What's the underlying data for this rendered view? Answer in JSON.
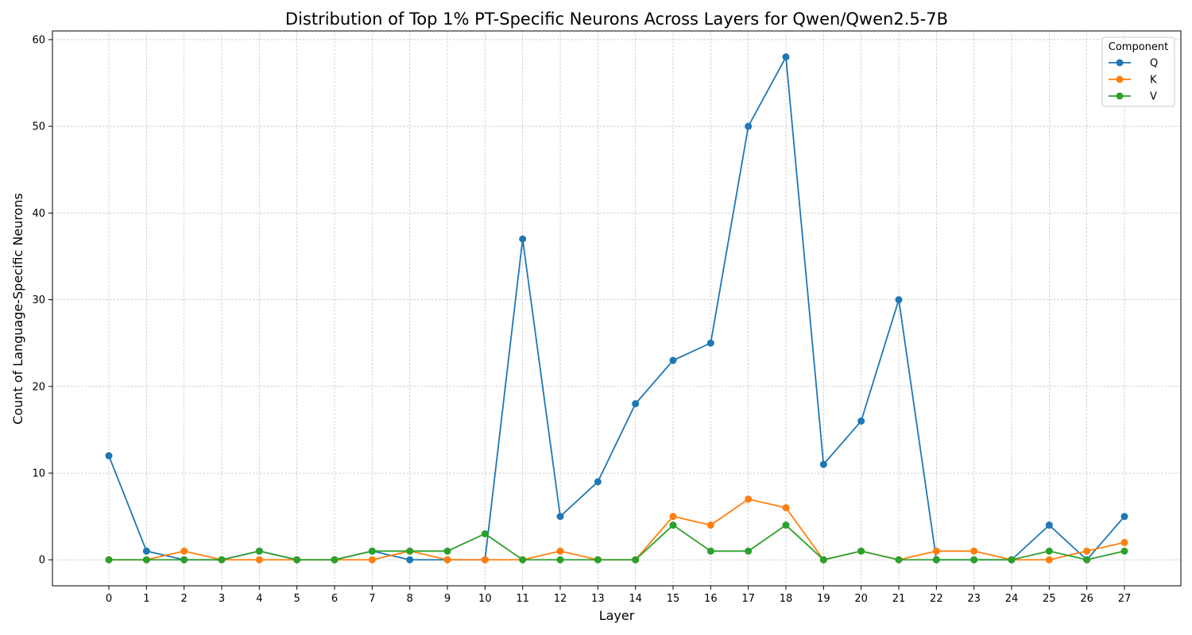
{
  "chart_data": {
    "type": "line",
    "title": "Distribution of Top 1% PT-Specific Neurons Across Layers for Qwen/Qwen2.5-7B",
    "xlabel": "Layer",
    "ylabel": "Count of Language-Specific Neurons",
    "x": [
      0,
      1,
      2,
      3,
      4,
      5,
      6,
      7,
      8,
      9,
      10,
      11,
      12,
      13,
      14,
      15,
      16,
      17,
      18,
      19,
      20,
      21,
      22,
      23,
      24,
      25,
      26,
      27
    ],
    "xlim": [
      -1.5,
      28.5
    ],
    "ylim": [
      -3,
      61
    ],
    "yticks": [
      0,
      10,
      20,
      30,
      40,
      50,
      60
    ],
    "grid": true,
    "legend": {
      "title": "Component",
      "placement": "top-right"
    },
    "series": [
      {
        "name": "Q",
        "color": "#1f77b4",
        "values": [
          12,
          1,
          0,
          0,
          1,
          0,
          0,
          1,
          0,
          0,
          0,
          37,
          5,
          9,
          18,
          23,
          25,
          50,
          58,
          11,
          16,
          30,
          0,
          0,
          0,
          4,
          0,
          5
        ]
      },
      {
        "name": "K",
        "color": "#ff7f0e",
        "values": [
          0,
          0,
          1,
          0,
          0,
          0,
          0,
          0,
          1,
          0,
          0,
          0,
          1,
          0,
          0,
          5,
          4,
          7,
          6,
          0,
          1,
          0,
          1,
          1,
          0,
          0,
          1,
          2
        ]
      },
      {
        "name": "V",
        "color": "#2ca02c",
        "values": [
          0,
          0,
          0,
          0,
          1,
          0,
          0,
          1,
          1,
          1,
          3,
          0,
          0,
          0,
          0,
          4,
          1,
          1,
          4,
          0,
          1,
          0,
          0,
          0,
          0,
          1,
          0,
          1
        ]
      }
    ]
  }
}
